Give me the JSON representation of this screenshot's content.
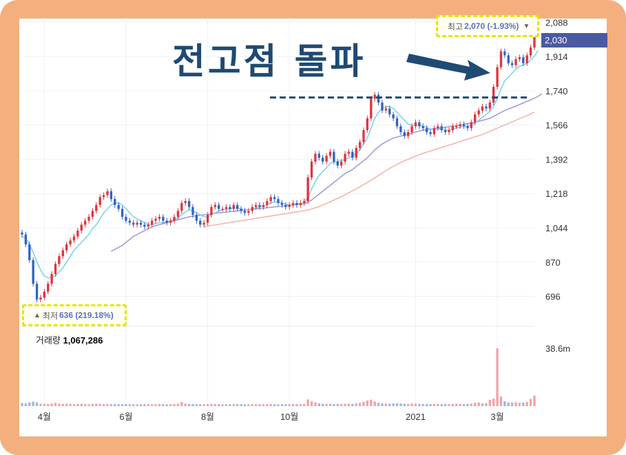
{
  "headline": "전고점 돌파",
  "high_marker": {
    "label": "최고",
    "value": "2,070 (-1.93%)",
    "arrow": "▼"
  },
  "low_marker": {
    "label": "최저",
    "value": "636 (219.18%)",
    "arrow": "▲"
  },
  "volume": {
    "label": "거래량",
    "value": "1,067,286"
  },
  "current_price_tag": "2,030",
  "colors": {
    "frame": "#f3b07e",
    "up": "#e0343c",
    "down": "#2f63c8",
    "ma_short": "#7fd3ea",
    "ma_mid": "#a79ad8",
    "ma_long": "#f4b5ae",
    "highlight": "#e5e600",
    "headline": "#1f4a73",
    "price_tag": "#4a5aa0"
  },
  "chart_data": {
    "type": "candlestick",
    "price_axis_ticks": [
      "2,088",
      "1,914",
      "1,740",
      "1,566",
      "1,392",
      "1,218",
      "1,044",
      "870",
      "696"
    ],
    "price_axis_values": [
      2088,
      1914,
      1740,
      1566,
      1392,
      1218,
      1044,
      870,
      696
    ],
    "volume_axis_tick": "38.6m",
    "x_tick_labels": [
      "4월",
      "6월",
      "8월",
      "10월",
      "2021",
      "3월"
    ],
    "x_tick_positions": [
      6,
      28,
      50,
      72,
      106,
      128
    ],
    "ylim": [
      600,
      2110
    ],
    "close_series": [
      1010,
      960,
      880,
      760,
      680,
      690,
      720,
      760,
      810,
      860,
      900,
      930,
      960,
      980,
      1000,
      1030,
      1060,
      1080,
      1100,
      1130,
      1160,
      1200,
      1210,
      1230,
      1190,
      1160,
      1140,
      1100,
      1080,
      1070,
      1060,
      1070,
      1060,
      1050,
      1060,
      1080,
      1090,
      1100,
      1080,
      1070,
      1080,
      1100,
      1130,
      1170,
      1180,
      1150,
      1110,
      1080,
      1060,
      1070,
      1110,
      1150,
      1160,
      1140,
      1140,
      1150,
      1140,
      1160,
      1140,
      1130,
      1120,
      1130,
      1150,
      1160,
      1150,
      1160,
      1180,
      1200,
      1190,
      1170,
      1160,
      1150,
      1160,
      1170,
      1160,
      1170,
      1180,
      1300,
      1380,
      1420,
      1400,
      1380,
      1410,
      1430,
      1380,
      1360,
      1380,
      1420,
      1430,
      1400,
      1450,
      1480,
      1540,
      1600,
      1700,
      1720,
      1680,
      1640,
      1650,
      1620,
      1600,
      1560,
      1530,
      1510,
      1530,
      1560,
      1580,
      1560,
      1550,
      1530,
      1520,
      1550,
      1560,
      1540,
      1530,
      1540,
      1560,
      1560,
      1570,
      1560,
      1550,
      1580,
      1620,
      1640,
      1660,
      1650,
      1680,
      1760,
      1860,
      1940,
      1920,
      1880,
      1870,
      1900,
      1910,
      1880,
      1920,
      1960,
      2030
    ],
    "ma_short_series": [
      1000,
      990,
      960,
      920,
      870,
      830,
      800,
      790,
      790,
      800,
      820,
      840,
      870,
      900,
      930,
      950,
      970,
      990,
      1010,
      1040,
      1060,
      1090,
      1120,
      1140,
      1160,
      1170,
      1170,
      1160,
      1140,
      1120,
      1100,
      1090,
      1080,
      1070,
      1060,
      1060,
      1065,
      1070,
      1070,
      1075,
      1080,
      1085,
      1095,
      1110,
      1125,
      1135,
      1130,
      1120,
      1110,
      1100,
      1100,
      1110,
      1120,
      1130,
      1135,
      1140,
      1140,
      1145,
      1145,
      1140,
      1135,
      1135,
      1140,
      1145,
      1150,
      1155,
      1160,
      1170,
      1175,
      1175,
      1170,
      1165,
      1160,
      1162,
      1165,
      1167,
      1170,
      1200,
      1240,
      1280,
      1310,
      1330,
      1350,
      1370,
      1380,
      1380,
      1385,
      1390,
      1400,
      1410,
      1420,
      1440,
      1470,
      1500,
      1550,
      1600,
      1630,
      1650,
      1660,
      1660,
      1650,
      1630,
      1610,
      1590,
      1570,
      1565,
      1565,
      1565,
      1560,
      1555,
      1545,
      1545,
      1545,
      1545,
      1540,
      1540,
      1545,
      1550,
      1555,
      1560,
      1560,
      1565,
      1575,
      1590,
      1605,
      1620,
      1635,
      1660,
      1700,
      1750,
      1790,
      1810,
      1830,
      1850,
      1865,
      1870,
      1880,
      1895,
      1915,
      1945
    ],
    "ma_mid_series": [
      null,
      null,
      null,
      null,
      null,
      null,
      null,
      null,
      null,
      null,
      null,
      null,
      null,
      null,
      null,
      null,
      null,
      null,
      null,
      null,
      null,
      null,
      null,
      null,
      925,
      935,
      945,
      955,
      970,
      985,
      1000,
      1010,
      1020,
      1030,
      1040,
      1048,
      1055,
      1060,
      1065,
      1070,
      1075,
      1080,
      1085,
      1090,
      1095,
      1100,
      1103,
      1105,
      1108,
      1110,
      1112,
      1115,
      1118,
      1120,
      1122,
      1124,
      1126,
      1128,
      1130,
      1132,
      1134,
      1136,
      1138,
      1140,
      1142,
      1144,
      1146,
      1148,
      1150,
      1152,
      1154,
      1156,
      1158,
      1160,
      1162,
      1164,
      1166,
      1175,
      1185,
      1200,
      1215,
      1230,
      1245,
      1260,
      1275,
      1290,
      1305,
      1320,
      1330,
      1340,
      1355,
      1370,
      1385,
      1400,
      1420,
      1440,
      1455,
      1470,
      1480,
      1490,
      1500,
      1505,
      1510,
      1515,
      1520,
      1525,
      1530,
      1535,
      1540,
      1542,
      1545,
      1548,
      1550,
      1552,
      1555,
      1558,
      1560,
      1563,
      1566,
      1570,
      1573,
      1576,
      1580,
      1585,
      1590,
      1595,
      1600,
      1610,
      1620,
      1630,
      1640,
      1648,
      1655,
      1662,
      1670,
      1678,
      1686,
      1694,
      1702,
      1712,
      1725
    ],
    "ma_long_series": [
      null,
      null,
      null,
      null,
      null,
      null,
      null,
      null,
      null,
      null,
      null,
      null,
      null,
      null,
      null,
      null,
      null,
      null,
      null,
      null,
      null,
      null,
      null,
      null,
      null,
      null,
      null,
      null,
      null,
      null,
      null,
      null,
      null,
      null,
      null,
      null,
      null,
      null,
      null,
      null,
      null,
      null,
      null,
      null,
      null,
      null,
      null,
      null,
      null,
      1050,
      1053,
      1056,
      1059,
      1062,
      1065,
      1068,
      1071,
      1074,
      1077,
      1080,
      1083,
      1086,
      1089,
      1092,
      1095,
      1098,
      1101,
      1104,
      1107,
      1110,
      1113,
      1116,
      1119,
      1122,
      1125,
      1128,
      1131,
      1135,
      1140,
      1146,
      1152,
      1160,
      1168,
      1176,
      1185,
      1194,
      1203,
      1212,
      1222,
      1232,
      1242,
      1252,
      1263,
      1274,
      1286,
      1298,
      1310,
      1322,
      1334,
      1346,
      1356,
      1366,
      1376,
      1384,
      1392,
      1400,
      1408,
      1415,
      1422,
      1428,
      1434,
      1440,
      1446,
      1452,
      1458,
      1464,
      1470,
      1476,
      1482,
      1488,
      1494,
      1500,
      1506,
      1512,
      1518,
      1526,
      1534,
      1542,
      1550,
      1558,
      1566,
      1574,
      1582,
      1590,
      1598,
      1606,
      1614,
      1622,
      1632
    ],
    "volume_series": [
      2.1,
      1.8,
      2.4,
      3.0,
      2.5,
      1.6,
      1.5,
      1.4,
      1.8,
      2.2,
      1.7,
      1.5,
      1.6,
      1.4,
      1.3,
      1.5,
      1.6,
      1.4,
      1.3,
      1.5,
      1.7,
      1.6,
      1.4,
      1.5,
      1.3,
      1.4,
      1.3,
      1.2,
      1.4,
      1.3,
      1.2,
      1.3,
      1.2,
      1.3,
      1.4,
      1.3,
      1.2,
      1.4,
      1.3,
      1.2,
      1.3,
      1.4,
      1.6,
      2.8,
      1.7,
      1.5,
      1.4,
      1.3,
      1.2,
      1.3,
      1.4,
      1.5,
      1.4,
      1.3,
      1.2,
      1.3,
      1.2,
      1.3,
      1.4,
      1.3,
      1.2,
      1.3,
      1.4,
      1.3,
      1.2,
      1.3,
      1.4,
      1.5,
      1.3,
      1.2,
      1.3,
      1.2,
      1.3,
      1.4,
      1.3,
      1.4,
      1.5,
      4.5,
      3.2,
      2.5,
      1.9,
      1.6,
      1.5,
      1.6,
      1.4,
      1.5,
      1.4,
      1.6,
      1.7,
      1.5,
      1.8,
      2.1,
      2.8,
      3.8,
      4.3,
      3.1,
      2.2,
      1.9,
      1.7,
      1.6,
      1.8,
      1.9,
      1.7,
      1.6,
      1.5,
      1.7,
      1.6,
      1.5,
      1.4,
      1.5,
      1.4,
      1.6,
      1.5,
      1.4,
      1.5,
      1.4,
      1.5,
      1.6,
      1.5,
      1.4,
      1.5,
      1.7,
      2.2,
      2.5,
      1.9,
      1.8,
      4.2,
      5.0,
      38.6,
      6.5,
      3.2,
      2.5,
      2.4,
      2.6,
      2.2,
      2.3,
      2.8,
      4.8,
      7.0
    ]
  }
}
